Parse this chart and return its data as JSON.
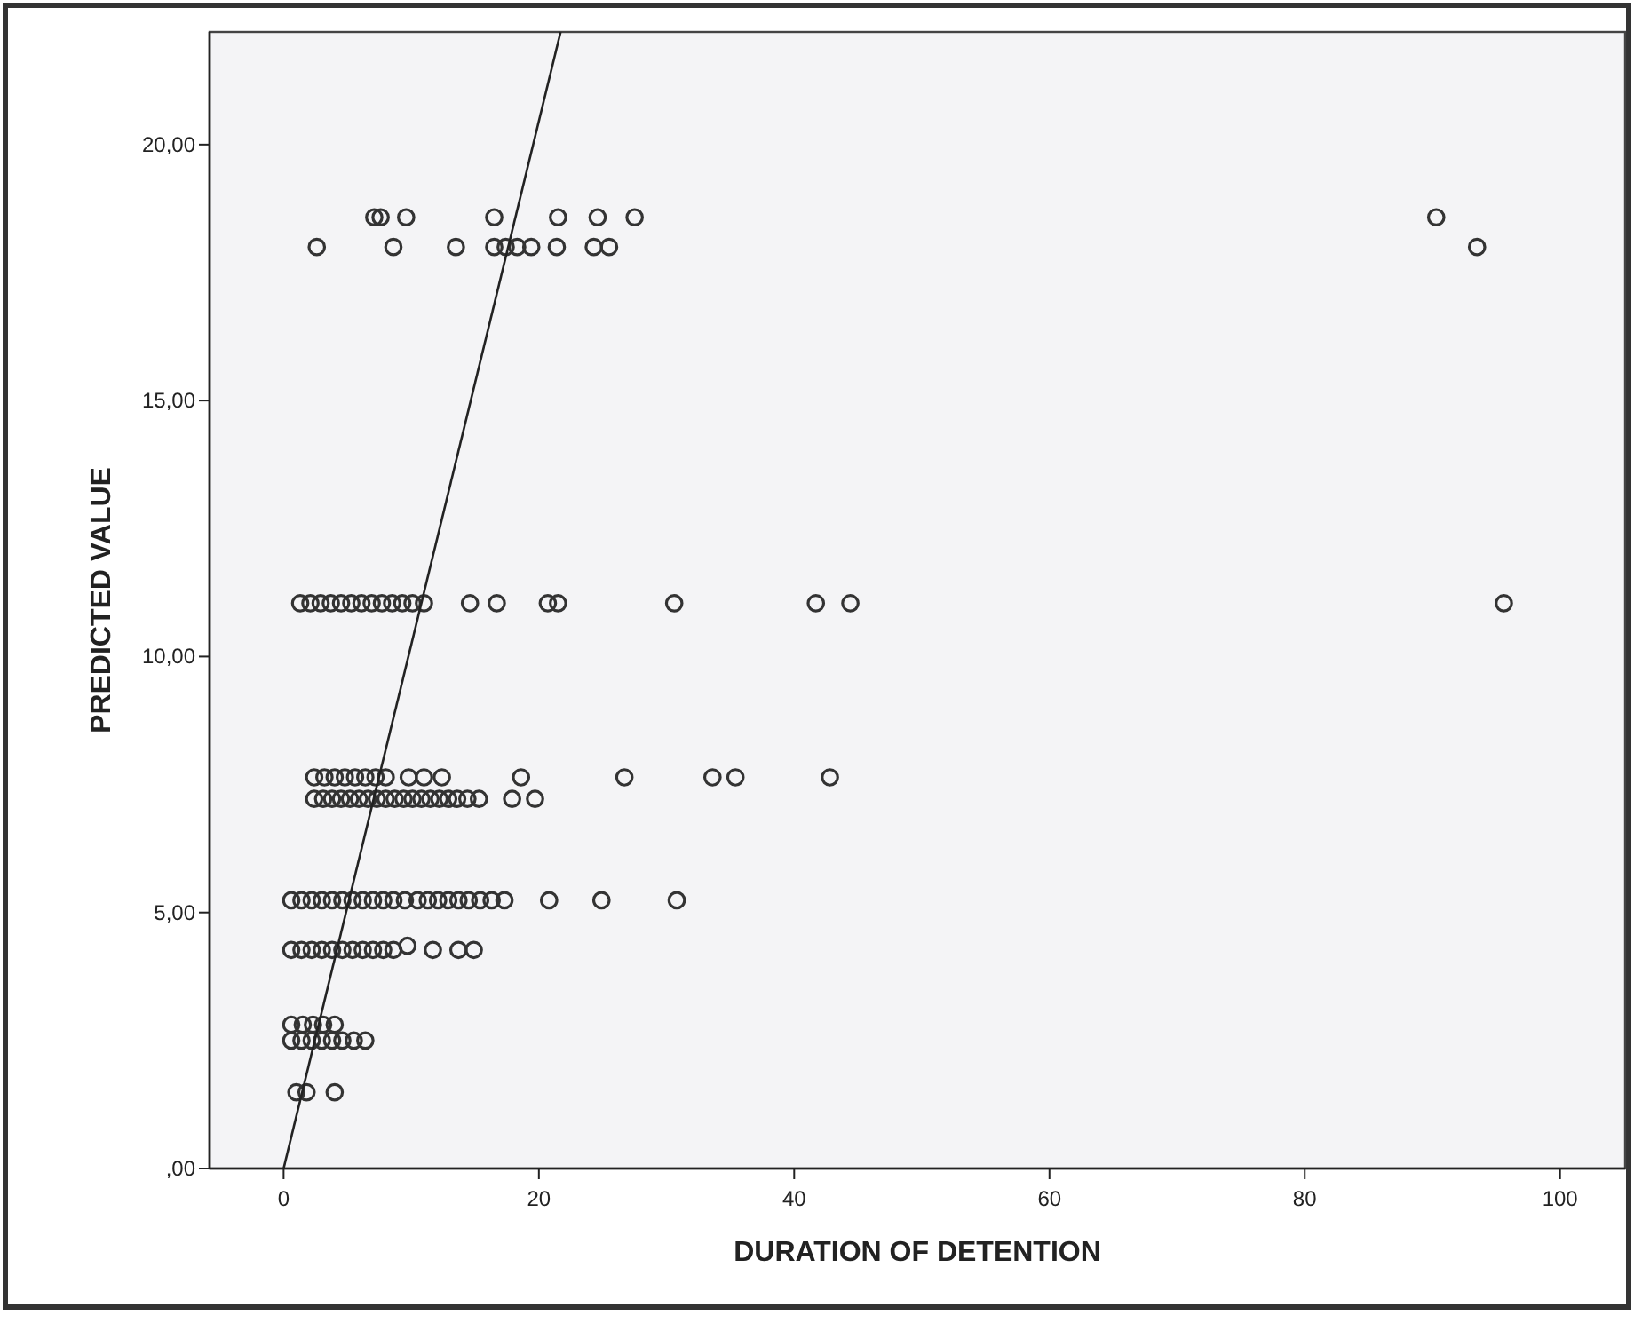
{
  "chart_data": {
    "type": "scatter",
    "xlabel": "DURATION OF DETENTION",
    "ylabel": "PREDICTED VALUE",
    "xlim": [
      -5.8,
      105.1
    ],
    "ylim": [
      0,
      22.2
    ],
    "xticks": [
      0,
      20,
      40,
      60,
      80,
      100
    ],
    "yticks": [
      {
        "value": 0,
        "label": ",00"
      },
      {
        "value": 5,
        "label": "5,00"
      },
      {
        "value": 10,
        "label": "10,00"
      },
      {
        "value": 15,
        "label": "15,00"
      },
      {
        "value": 20,
        "label": "20,00"
      }
    ],
    "grid": false,
    "series": [
      {
        "marker": "circle",
        "color": "#333333",
        "x": [
          7.1,
          7.6,
          9.6,
          16.5,
          21.5,
          24.6,
          27.5,
          90.3,
          2.6,
          8.6,
          13.5,
          16.5,
          17.4,
          18.3,
          19.4,
          21.4,
          24.3,
          25.5,
          93.5,
          1.3,
          2.1,
          2.9,
          3.7,
          4.5,
          5.3,
          6.1,
          6.9,
          7.7,
          8.5,
          9.3,
          10.1,
          11.0,
          14.6,
          16.7,
          20.7,
          21.5,
          30.6,
          41.7,
          44.4,
          95.6,
          2.4,
          3.2,
          4.0,
          4.8,
          5.6,
          6.4,
          7.2,
          8.0,
          9.8,
          11.0,
          12.4,
          18.6,
          26.7,
          33.6,
          35.4,
          42.8,
          2.4,
          3.1,
          3.8,
          4.5,
          5.2,
          5.9,
          6.6,
          7.3,
          8.0,
          8.7,
          9.4,
          10.1,
          10.8,
          11.5,
          12.2,
          12.9,
          13.6,
          14.4,
          15.3,
          17.9,
          19.7,
          0.6,
          1.4,
          2.2,
          3.0,
          3.8,
          4.6,
          5.4,
          6.2,
          7.0,
          7.8,
          8.6,
          9.5,
          10.5,
          11.3,
          12.1,
          12.9,
          13.7,
          14.5,
          15.4,
          16.3,
          17.3,
          20.8,
          24.9,
          30.8,
          0.6,
          1.4,
          2.2,
          3.0,
          3.8,
          4.6,
          5.4,
          6.2,
          7.0,
          7.8,
          8.6,
          11.7,
          13.7,
          14.9,
          9.7,
          0.6,
          1.5,
          2.3,
          3.1,
          4.0,
          0.6,
          1.4,
          2.2,
          3.0,
          3.8,
          4.6,
          5.5,
          6.4,
          1.0,
          1.8,
          4.0
        ],
        "values": [
          18.58,
          18.58,
          18.58,
          18.58,
          18.58,
          18.58,
          18.58,
          18.58,
          18.0,
          18.0,
          18.0,
          18.0,
          18.0,
          18.0,
          18.0,
          18.0,
          18.0,
          18.0,
          18.0,
          11.04,
          11.04,
          11.04,
          11.04,
          11.04,
          11.04,
          11.04,
          11.04,
          11.04,
          11.04,
          11.04,
          11.04,
          11.04,
          11.04,
          11.04,
          11.04,
          11.04,
          11.04,
          11.04,
          11.04,
          11.04,
          7.64,
          7.64,
          7.64,
          7.64,
          7.64,
          7.64,
          7.64,
          7.64,
          7.64,
          7.64,
          7.64,
          7.64,
          7.64,
          7.64,
          7.64,
          7.64,
          7.22,
          7.22,
          7.22,
          7.22,
          7.22,
          7.22,
          7.22,
          7.22,
          7.22,
          7.22,
          7.22,
          7.22,
          7.22,
          7.22,
          7.22,
          7.22,
          7.22,
          7.22,
          7.22,
          7.22,
          7.22,
          5.24,
          5.24,
          5.24,
          5.24,
          5.24,
          5.24,
          5.24,
          5.24,
          5.24,
          5.24,
          5.24,
          5.24,
          5.24,
          5.24,
          5.24,
          5.24,
          5.24,
          5.24,
          5.24,
          5.24,
          5.24,
          5.24,
          5.24,
          5.24,
          4.27,
          4.27,
          4.27,
          4.27,
          4.27,
          4.27,
          4.27,
          4.27,
          4.27,
          4.27,
          4.27,
          4.27,
          4.27,
          4.27,
          4.35,
          2.81,
          2.81,
          2.81,
          2.81,
          2.81,
          2.5,
          2.5,
          2.5,
          2.5,
          2.5,
          2.5,
          2.5,
          2.5,
          1.49,
          1.49,
          1.49
        ]
      },
      {
        "type": "line",
        "marker": "none",
        "color": "#222222",
        "x": [
          0,
          21.7
        ],
        "values": [
          0,
          22.2
        ]
      }
    ]
  }
}
